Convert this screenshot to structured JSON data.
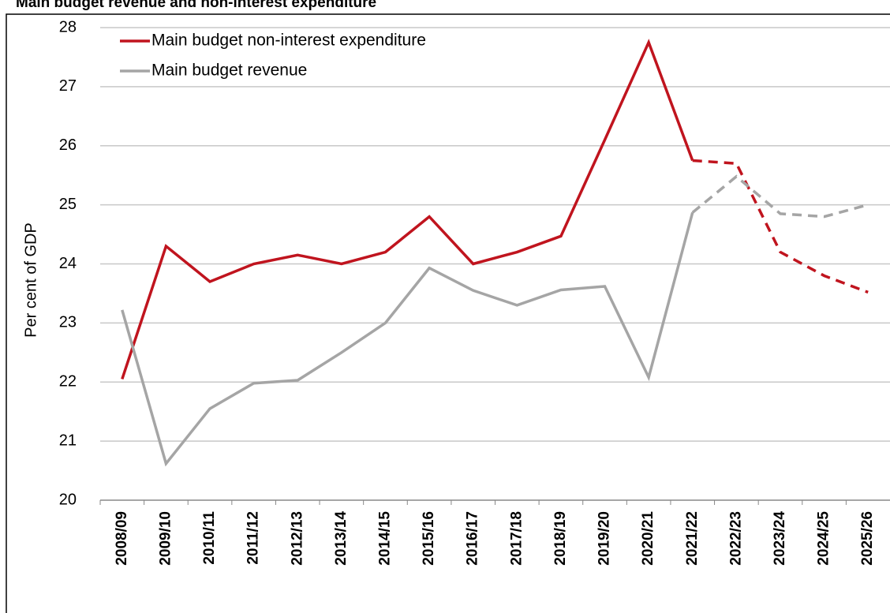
{
  "chart_data": {
    "type": "line",
    "title": "Main budget revenue and non-interest expenditure",
    "y_label": "Per cent of GDP",
    "categories": [
      "2008/09",
      "2009/10",
      "2010/11",
      "2011/12",
      "2012/13",
      "2013/14",
      "2014/15",
      "2015/16",
      "2016/17",
      "2017/18",
      "2018/19",
      "2019/20",
      "2020/21",
      "2021/22",
      "2022/23",
      "2023/24",
      "2024/25",
      "2025/26"
    ],
    "series": [
      {
        "name": "Main budget non-interest expenditure",
        "color": "#c0141e",
        "dashed_from_index": 13,
        "values": [
          22.05,
          24.3,
          23.7,
          24.0,
          24.15,
          24.0,
          24.2,
          24.8,
          24.0,
          24.2,
          24.47,
          26.1,
          27.75,
          25.75,
          25.7,
          24.2,
          23.8,
          23.52
        ]
      },
      {
        "name": "Main budget revenue",
        "color": "#a5a5a5",
        "dashed_from_index": 13,
        "values": [
          23.22,
          20.62,
          21.55,
          21.98,
          22.03,
          22.5,
          23.0,
          23.93,
          23.55,
          23.3,
          23.56,
          23.62,
          22.08,
          24.87,
          25.48,
          24.85,
          24.8,
          25.0
        ]
      }
    ],
    "ylim": [
      20,
      28
    ],
    "yticks": [
      20,
      21,
      22,
      23,
      24,
      25,
      26,
      27,
      28
    ],
    "grid": true,
    "legend": "upper left"
  }
}
